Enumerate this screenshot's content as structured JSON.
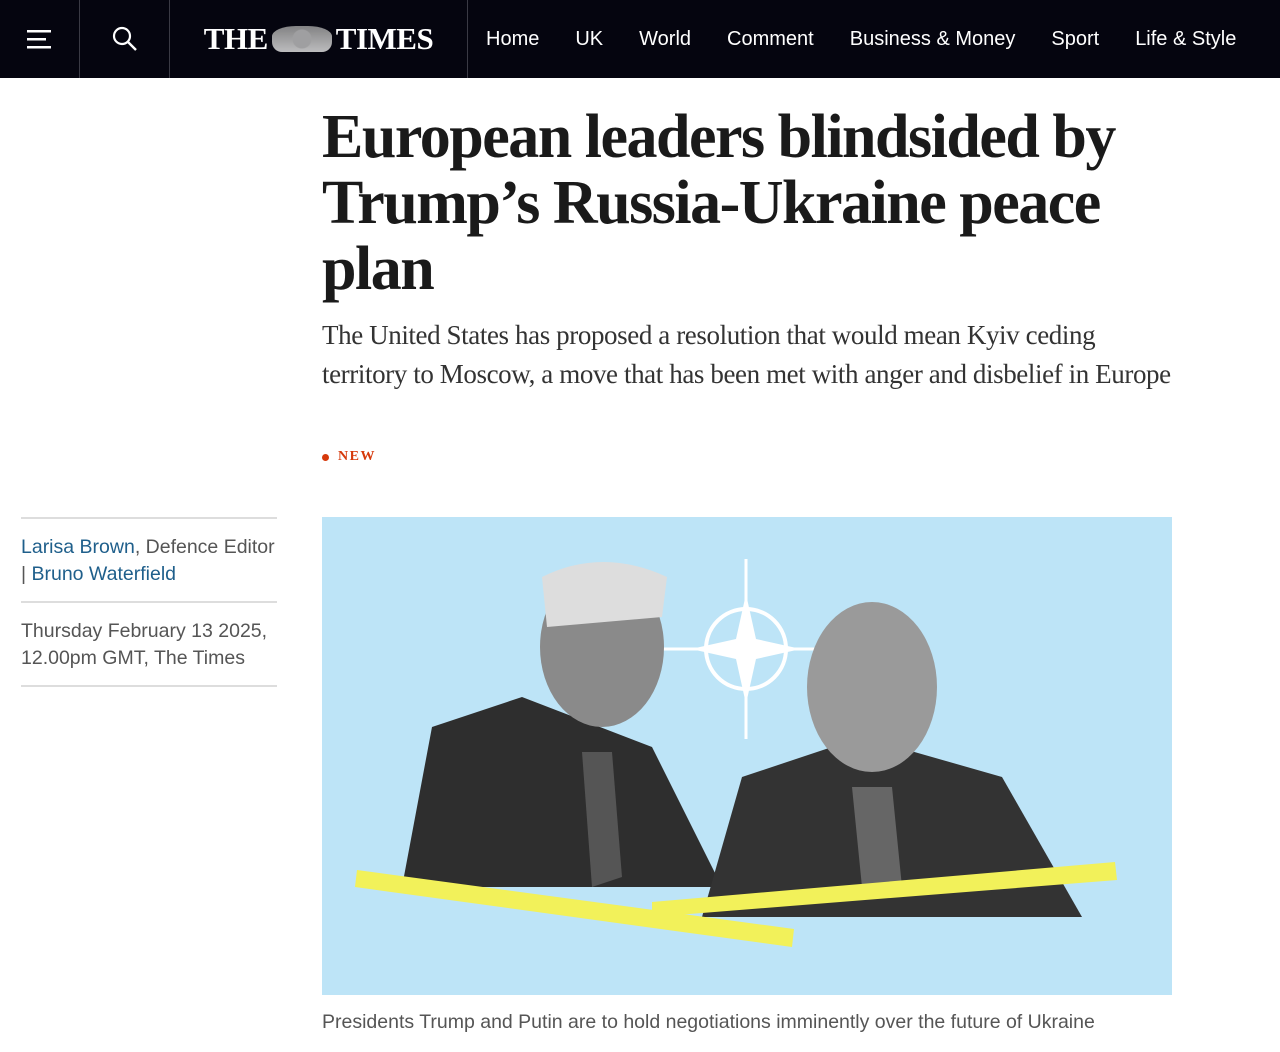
{
  "nav": {
    "logo": "THE TIMES",
    "links": [
      "Home",
      "UK",
      "World",
      "Comment",
      "Business & Money",
      "Sport",
      "Life & Style"
    ]
  },
  "article": {
    "headline": "European leaders blindsided by Trump’s Russia-Ukraine peace plan",
    "standfirst": "The United States has proposed a resolution that would mean Kyiv ceding territory to Moscow, a move that has been met with anger and disbelief in Europe",
    "badge": "NEW",
    "author1": "Larisa Brown",
    "role": ", Defence Editor | ",
    "author2": "Bruno Waterfield",
    "date": "Thursday February 13 2025, 12.00pm GMT, The Times",
    "caption": "Presidents Trump and Putin are to hold negotiations imminently over the future of Ukraine"
  },
  "colors": {
    "nav_bg": "#05050f",
    "accent": "#d6390b",
    "link": "#1f5f8b",
    "image_bg": "#bde4f7"
  }
}
